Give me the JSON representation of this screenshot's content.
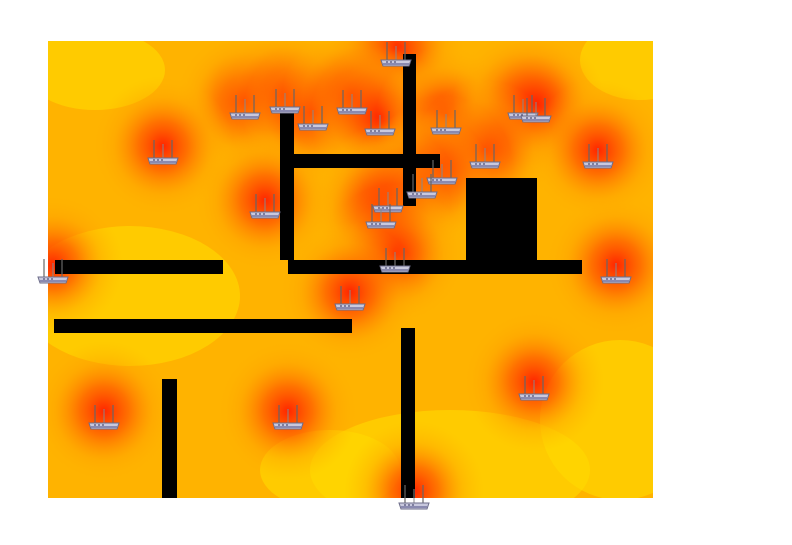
{
  "colors": {
    "background": "#ffffff",
    "coverage_weak": "#ffd400",
    "coverage_mid": "#ffa000",
    "coverage_strong": "#ff2a00",
    "wall": "#000000",
    "router_body": "#c8c8dc",
    "router_antenna": "#777777"
  },
  "legend": []
}
